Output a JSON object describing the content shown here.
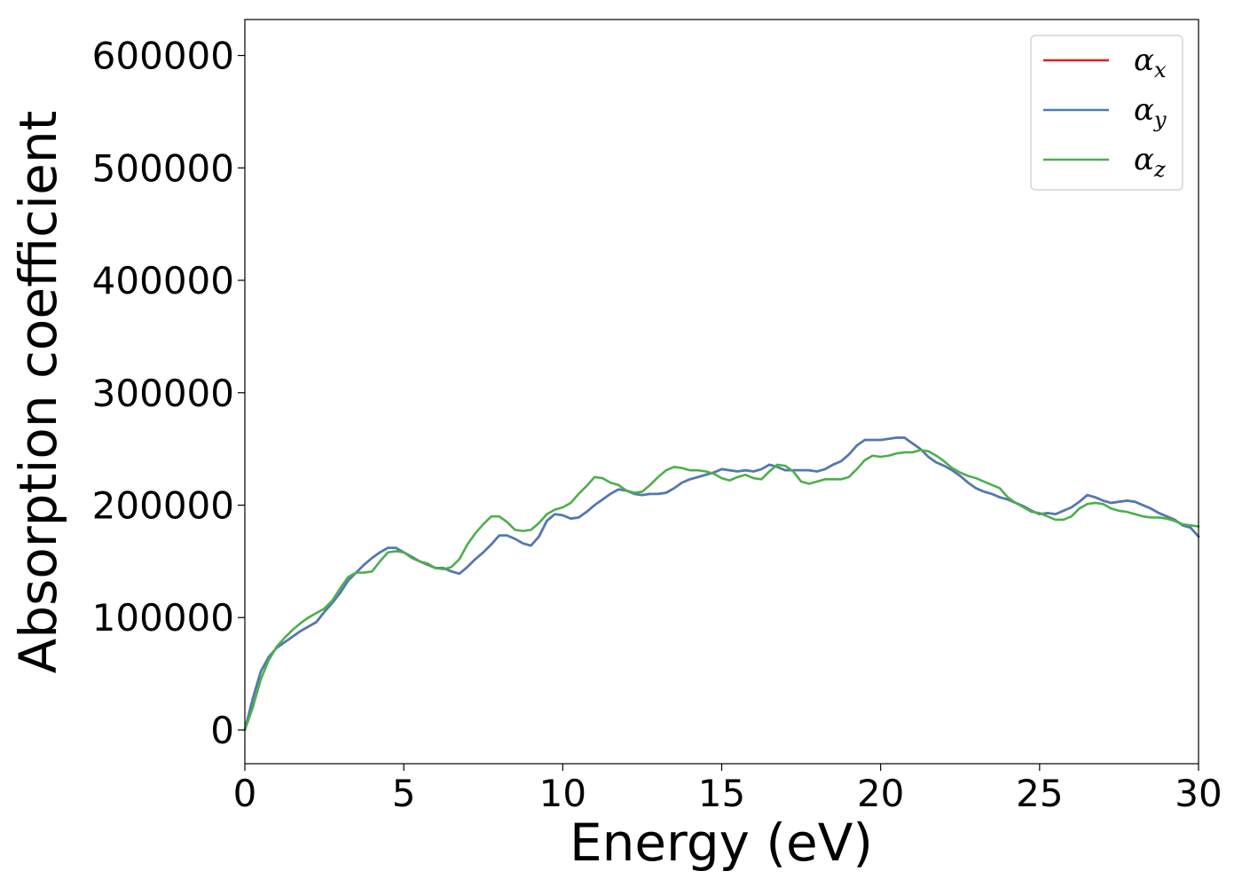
{
  "chart_data": {
    "type": "line",
    "title": "",
    "xlabel": "Energy (eV)",
    "ylabel": "Absorption coefficient",
    "xlim": [
      0,
      30
    ],
    "ylim": [
      -30000,
      632000
    ],
    "xticks": [
      0,
      5,
      10,
      15,
      20,
      25,
      30
    ],
    "yticks": [
      0,
      100000,
      200000,
      300000,
      400000,
      500000,
      600000
    ],
    "xtick_labels": [
      "0",
      "5",
      "10",
      "15",
      "20",
      "25",
      "30"
    ],
    "ytick_labels": [
      "0",
      "100000",
      "200000",
      "300000",
      "400000",
      "500000",
      "600000"
    ],
    "grid": false,
    "legend_position": "top-right",
    "x": [
      0,
      0.25,
      0.5,
      0.75,
      1,
      1.25,
      1.5,
      1.75,
      2,
      2.25,
      2.5,
      2.75,
      3,
      3.25,
      3.5,
      3.75,
      4,
      4.25,
      4.5,
      4.75,
      5,
      5.25,
      5.5,
      5.75,
      6,
      6.25,
      6.5,
      6.75,
      7,
      7.25,
      7.5,
      7.75,
      8,
      8.25,
      8.5,
      8.75,
      9,
      9.25,
      9.5,
      9.75,
      10,
      10.25,
      10.5,
      10.75,
      11,
      11.25,
      11.5,
      11.75,
      12,
      12.25,
      12.5,
      12.75,
      13,
      13.25,
      13.5,
      13.75,
      14,
      14.25,
      14.5,
      14.75,
      15,
      15.25,
      15.5,
      15.75,
      16,
      16.25,
      16.5,
      16.75,
      17,
      17.25,
      17.5,
      17.75,
      18,
      18.25,
      18.5,
      18.75,
      19,
      19.25,
      19.5,
      19.75,
      20,
      20.25,
      20.5,
      20.75,
      21,
      21.25,
      21.5,
      21.75,
      22,
      22.25,
      22.5,
      22.75,
      23,
      23.25,
      23.5,
      23.75,
      24,
      24.25,
      24.5,
      24.75,
      25,
      25.25,
      25.5,
      25.75,
      26,
      26.25,
      26.5,
      26.75,
      27,
      27.25,
      27.5,
      27.75,
      28,
      28.25,
      28.5,
      28.75,
      29,
      29.25,
      29.5,
      29.75,
      30
    ],
    "series": [
      {
        "name": "α_x",
        "label_main": "α",
        "label_sub": "x",
        "color": "#e41a1c",
        "values": [
          0,
          28000,
          52000,
          65000,
          73000,
          78000,
          83000,
          88000,
          92000,
          96000,
          105000,
          113000,
          122000,
          133000,
          140000,
          147000,
          153000,
          158000,
          162000,
          162000,
          158000,
          154000,
          150000,
          147000,
          144000,
          144000,
          141000,
          139000,
          145000,
          152000,
          158000,
          165000,
          173000,
          173000,
          170000,
          166000,
          164000,
          172000,
          186000,
          192000,
          191000,
          188000,
          189000,
          194000,
          200000,
          205000,
          210000,
          214000,
          213000,
          210000,
          209000,
          210000,
          210000,
          211000,
          215000,
          220000,
          223000,
          225000,
          227000,
          229000,
          232000,
          231000,
          230000,
          231000,
          230000,
          232000,
          236000,
          234000,
          231000,
          231000,
          231000,
          231000,
          230000,
          232000,
          236000,
          239000,
          245000,
          253000,
          258000,
          258000,
          258000,
          259000,
          260000,
          260000,
          255000,
          250000,
          243000,
          238000,
          235000,
          231000,
          226000,
          220000,
          215000,
          212000,
          210000,
          207000,
          205000,
          202000,
          199000,
          195000,
          192000,
          193000,
          192000,
          195000,
          198000,
          203000,
          209000,
          207000,
          204000,
          202000,
          203000,
          204000,
          203000,
          200000,
          197000,
          193000,
          190000,
          187000,
          182000,
          180000,
          172000
        ]
      },
      {
        "name": "α_y",
        "label_main": "α",
        "label_sub": "y",
        "color": "#4a7db3",
        "values": [
          0,
          28000,
          52000,
          65000,
          73000,
          78000,
          83000,
          88000,
          92000,
          96000,
          105000,
          113000,
          122000,
          133000,
          140000,
          147000,
          153000,
          158000,
          162000,
          162000,
          158000,
          154000,
          150000,
          147000,
          144000,
          144000,
          141000,
          139000,
          145000,
          152000,
          158000,
          165000,
          173000,
          173000,
          170000,
          166000,
          164000,
          172000,
          186000,
          192000,
          191000,
          188000,
          189000,
          194000,
          200000,
          205000,
          210000,
          214000,
          213000,
          210000,
          209000,
          210000,
          210000,
          211000,
          215000,
          220000,
          223000,
          225000,
          227000,
          229000,
          232000,
          231000,
          230000,
          231000,
          230000,
          232000,
          236000,
          234000,
          231000,
          231000,
          231000,
          231000,
          230000,
          232000,
          236000,
          239000,
          245000,
          253000,
          258000,
          258000,
          258000,
          259000,
          260000,
          260000,
          255000,
          250000,
          243000,
          238000,
          235000,
          231000,
          226000,
          220000,
          215000,
          212000,
          210000,
          207000,
          205000,
          202000,
          199000,
          195000,
          192000,
          193000,
          192000,
          195000,
          198000,
          203000,
          209000,
          207000,
          204000,
          202000,
          203000,
          204000,
          203000,
          200000,
          197000,
          193000,
          190000,
          187000,
          182000,
          180000,
          172000
        ]
      },
      {
        "name": "α_z",
        "label_main": "α",
        "label_sub": "z",
        "color": "#4daf4a",
        "values": [
          0,
          20000,
          45000,
          62000,
          74000,
          82000,
          89000,
          95000,
          100000,
          104000,
          108000,
          115000,
          126000,
          136000,
          140000,
          140000,
          141000,
          150000,
          158000,
          159000,
          158000,
          153000,
          150000,
          148000,
          144000,
          143000,
          145000,
          152000,
          165000,
          175000,
          183000,
          190000,
          190000,
          185000,
          178000,
          177000,
          178000,
          184000,
          192000,
          196000,
          198000,
          202000,
          210000,
          217000,
          225000,
          224000,
          220000,
          218000,
          213000,
          211000,
          212000,
          218000,
          225000,
          231000,
          234000,
          233000,
          231000,
          231000,
          230000,
          228000,
          224000,
          222000,
          225000,
          227000,
          224000,
          223000,
          230000,
          236000,
          235000,
          230000,
          221000,
          219000,
          221000,
          223000,
          223000,
          223000,
          225000,
          232000,
          240000,
          244000,
          243000,
          244000,
          246000,
          247000,
          247000,
          249000,
          248000,
          244000,
          239000,
          233000,
          229000,
          226000,
          224000,
          221000,
          218000,
          215000,
          207000,
          202000,
          198000,
          194000,
          193000,
          190000,
          187000,
          187000,
          190000,
          197000,
          201000,
          202000,
          201000,
          197000,
          195000,
          194000,
          192000,
          190000,
          189000,
          189000,
          188000,
          186000,
          183000,
          182000,
          181000
        ]
      }
    ]
  }
}
